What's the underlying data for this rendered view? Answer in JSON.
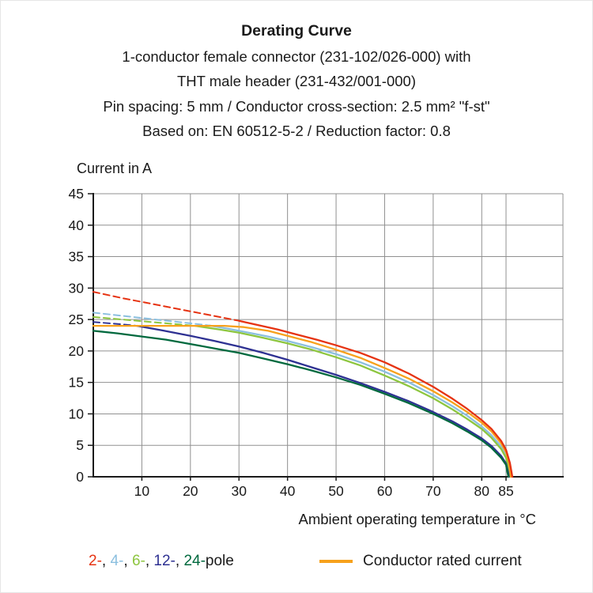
{
  "header": {
    "title": "Derating Curve",
    "subtitle_lines": [
      "1-conductor female connector (231-102/026-000) with",
      "THT male header (231-432/001-000)",
      "Pin spacing: 5 mm / Conductor cross-section: 2.5 mm² \"f-st\"",
      "Based on: EN 60512-5-2 / Reduction factor: 0.8"
    ]
  },
  "chart_data": {
    "type": "line",
    "title": "Derating Curve",
    "ylabel": "Current in A",
    "xlabel": "Ambient operating temperature in °C",
    "xlim": [
      0,
      97
    ],
    "ylim": [
      0,
      45
    ],
    "x_ticks": [
      10,
      20,
      30,
      40,
      50,
      60,
      70,
      80,
      85
    ],
    "y_ticks": [
      0,
      5,
      10,
      15,
      20,
      25,
      30,
      35,
      40,
      45
    ],
    "grid": true,
    "grid_color": "#909090",
    "axis_color": "#1a1a1a",
    "series": [
      {
        "name": "4-pole",
        "color": "#8bbfdf",
        "dashed": [
          [
            0,
            26.1
          ],
          [
            7,
            25.5
          ],
          [
            14,
            24.9
          ],
          [
            20,
            24.4
          ],
          [
            24,
            24.05
          ]
        ],
        "solid": [
          [
            24,
            24.05
          ],
          [
            28,
            23.5
          ],
          [
            32,
            22.9
          ],
          [
            36,
            22.3
          ],
          [
            40,
            21.6
          ],
          [
            45,
            20.6
          ],
          [
            50,
            19.5
          ],
          [
            55,
            18.2
          ],
          [
            60,
            16.7
          ],
          [
            65,
            15.0
          ],
          [
            70,
            13.0
          ],
          [
            74,
            11.2
          ],
          [
            77,
            9.7
          ],
          [
            80,
            8.0
          ],
          [
            82,
            6.6
          ],
          [
            84,
            4.8
          ],
          [
            85,
            3.4
          ],
          [
            85.6,
            1.6
          ],
          [
            86,
            0
          ]
        ]
      },
      {
        "name": "6-pole",
        "color": "#8dc63f",
        "dashed": [
          [
            0,
            25.4
          ],
          [
            6,
            25.0
          ],
          [
            12,
            24.6
          ],
          [
            18,
            24.2
          ],
          [
            21,
            24.0
          ]
        ],
        "solid": [
          [
            21,
            24.0
          ],
          [
            26,
            23.4
          ],
          [
            30,
            22.9
          ],
          [
            35,
            22.1
          ],
          [
            40,
            21.2
          ],
          [
            45,
            20.2
          ],
          [
            50,
            19.0
          ],
          [
            55,
            17.7
          ],
          [
            60,
            16.1
          ],
          [
            65,
            14.4
          ],
          [
            70,
            12.5
          ],
          [
            74,
            10.7
          ],
          [
            77,
            9.2
          ],
          [
            80,
            7.6
          ],
          [
            82,
            6.2
          ],
          [
            84,
            4.4
          ],
          [
            85,
            3.0
          ],
          [
            85.5,
            1.3
          ],
          [
            85.9,
            0
          ]
        ]
      },
      {
        "name": "12-pole",
        "color": "#2e3192",
        "dashed": [
          [
            0,
            24.6
          ],
          [
            5,
            24.3
          ],
          [
            9,
            24.0
          ]
        ],
        "solid": [
          [
            9,
            24.0
          ],
          [
            14,
            23.3
          ],
          [
            20,
            22.4
          ],
          [
            25,
            21.6
          ],
          [
            30,
            20.7
          ],
          [
            35,
            19.7
          ],
          [
            40,
            18.6
          ],
          [
            45,
            17.4
          ],
          [
            50,
            16.2
          ],
          [
            55,
            14.9
          ],
          [
            60,
            13.5
          ],
          [
            65,
            12.0
          ],
          [
            70,
            10.3
          ],
          [
            74,
            8.8
          ],
          [
            77,
            7.5
          ],
          [
            80,
            6.1
          ],
          [
            82,
            4.9
          ],
          [
            84,
            3.3
          ],
          [
            85,
            2.1
          ],
          [
            85.4,
            0.8
          ],
          [
            85.6,
            0
          ]
        ]
      },
      {
        "name": "24-pole",
        "color": "#00693e",
        "dashed": null,
        "solid": [
          [
            0,
            23.2
          ],
          [
            5,
            22.8
          ],
          [
            10,
            22.3
          ],
          [
            15,
            21.8
          ],
          [
            20,
            21.1
          ],
          [
            25,
            20.4
          ],
          [
            30,
            19.7
          ],
          [
            35,
            18.8
          ],
          [
            40,
            17.9
          ],
          [
            45,
            16.9
          ],
          [
            50,
            15.8
          ],
          [
            55,
            14.6
          ],
          [
            60,
            13.2
          ],
          [
            65,
            11.7
          ],
          [
            70,
            10.0
          ],
          [
            74,
            8.5
          ],
          [
            77,
            7.2
          ],
          [
            80,
            5.8
          ],
          [
            82,
            4.6
          ],
          [
            84,
            3.0
          ],
          [
            85,
            1.9
          ],
          [
            85.3,
            0.7
          ],
          [
            85.5,
            0
          ]
        ]
      },
      {
        "name": "Conductor rated current",
        "color": "#f7a11c",
        "dashed": null,
        "solid": [
          [
            0,
            24
          ],
          [
            10,
            24
          ],
          [
            20,
            24
          ],
          [
            27,
            24
          ],
          [
            31,
            23.8
          ],
          [
            36,
            23.2
          ],
          [
            40,
            22.4
          ],
          [
            45,
            21.4
          ],
          [
            50,
            20.2
          ],
          [
            55,
            18.9
          ],
          [
            60,
            17.3
          ],
          [
            65,
            15.6
          ],
          [
            70,
            13.6
          ],
          [
            74,
            11.8
          ],
          [
            77,
            10.3
          ],
          [
            80,
            8.6
          ],
          [
            82,
            7.2
          ],
          [
            84,
            5.3
          ],
          [
            85,
            3.9
          ],
          [
            85.6,
            2.2
          ],
          [
            86,
            0
          ]
        ]
      },
      {
        "name": "2-pole",
        "color": "#e63312",
        "dashed": [
          [
            0,
            29.4
          ],
          [
            6,
            28.4
          ],
          [
            12,
            27.5
          ],
          [
            18,
            26.6
          ],
          [
            24,
            25.7
          ],
          [
            30,
            24.8
          ]
        ],
        "solid": [
          [
            30,
            24.8
          ],
          [
            34,
            24.1
          ],
          [
            38,
            23.4
          ],
          [
            42,
            22.6
          ],
          [
            46,
            21.8
          ],
          [
            50,
            20.9
          ],
          [
            55,
            19.7
          ],
          [
            60,
            18.2
          ],
          [
            65,
            16.4
          ],
          [
            70,
            14.3
          ],
          [
            74,
            12.4
          ],
          [
            77,
            10.8
          ],
          [
            80,
            9.0
          ],
          [
            82,
            7.6
          ],
          [
            84,
            5.7
          ],
          [
            85,
            4.3
          ],
          [
            85.8,
            2.2
          ],
          [
            86.3,
            0
          ]
        ]
      }
    ],
    "legend_position": "bottom"
  },
  "legend": {
    "pole_items": [
      {
        "label": "2-",
        "color": "#e63312"
      },
      {
        "label": "4-",
        "color": "#8bbfdf"
      },
      {
        "label": "6-",
        "color": "#8dc63f"
      },
      {
        "label": "12-",
        "color": "#2e3192"
      },
      {
        "label": "24-",
        "color": "#00693e"
      }
    ],
    "separator": ", ",
    "pole_suffix": "pole",
    "rated_label": "Conductor rated current",
    "rated_color": "#f7a11c"
  }
}
